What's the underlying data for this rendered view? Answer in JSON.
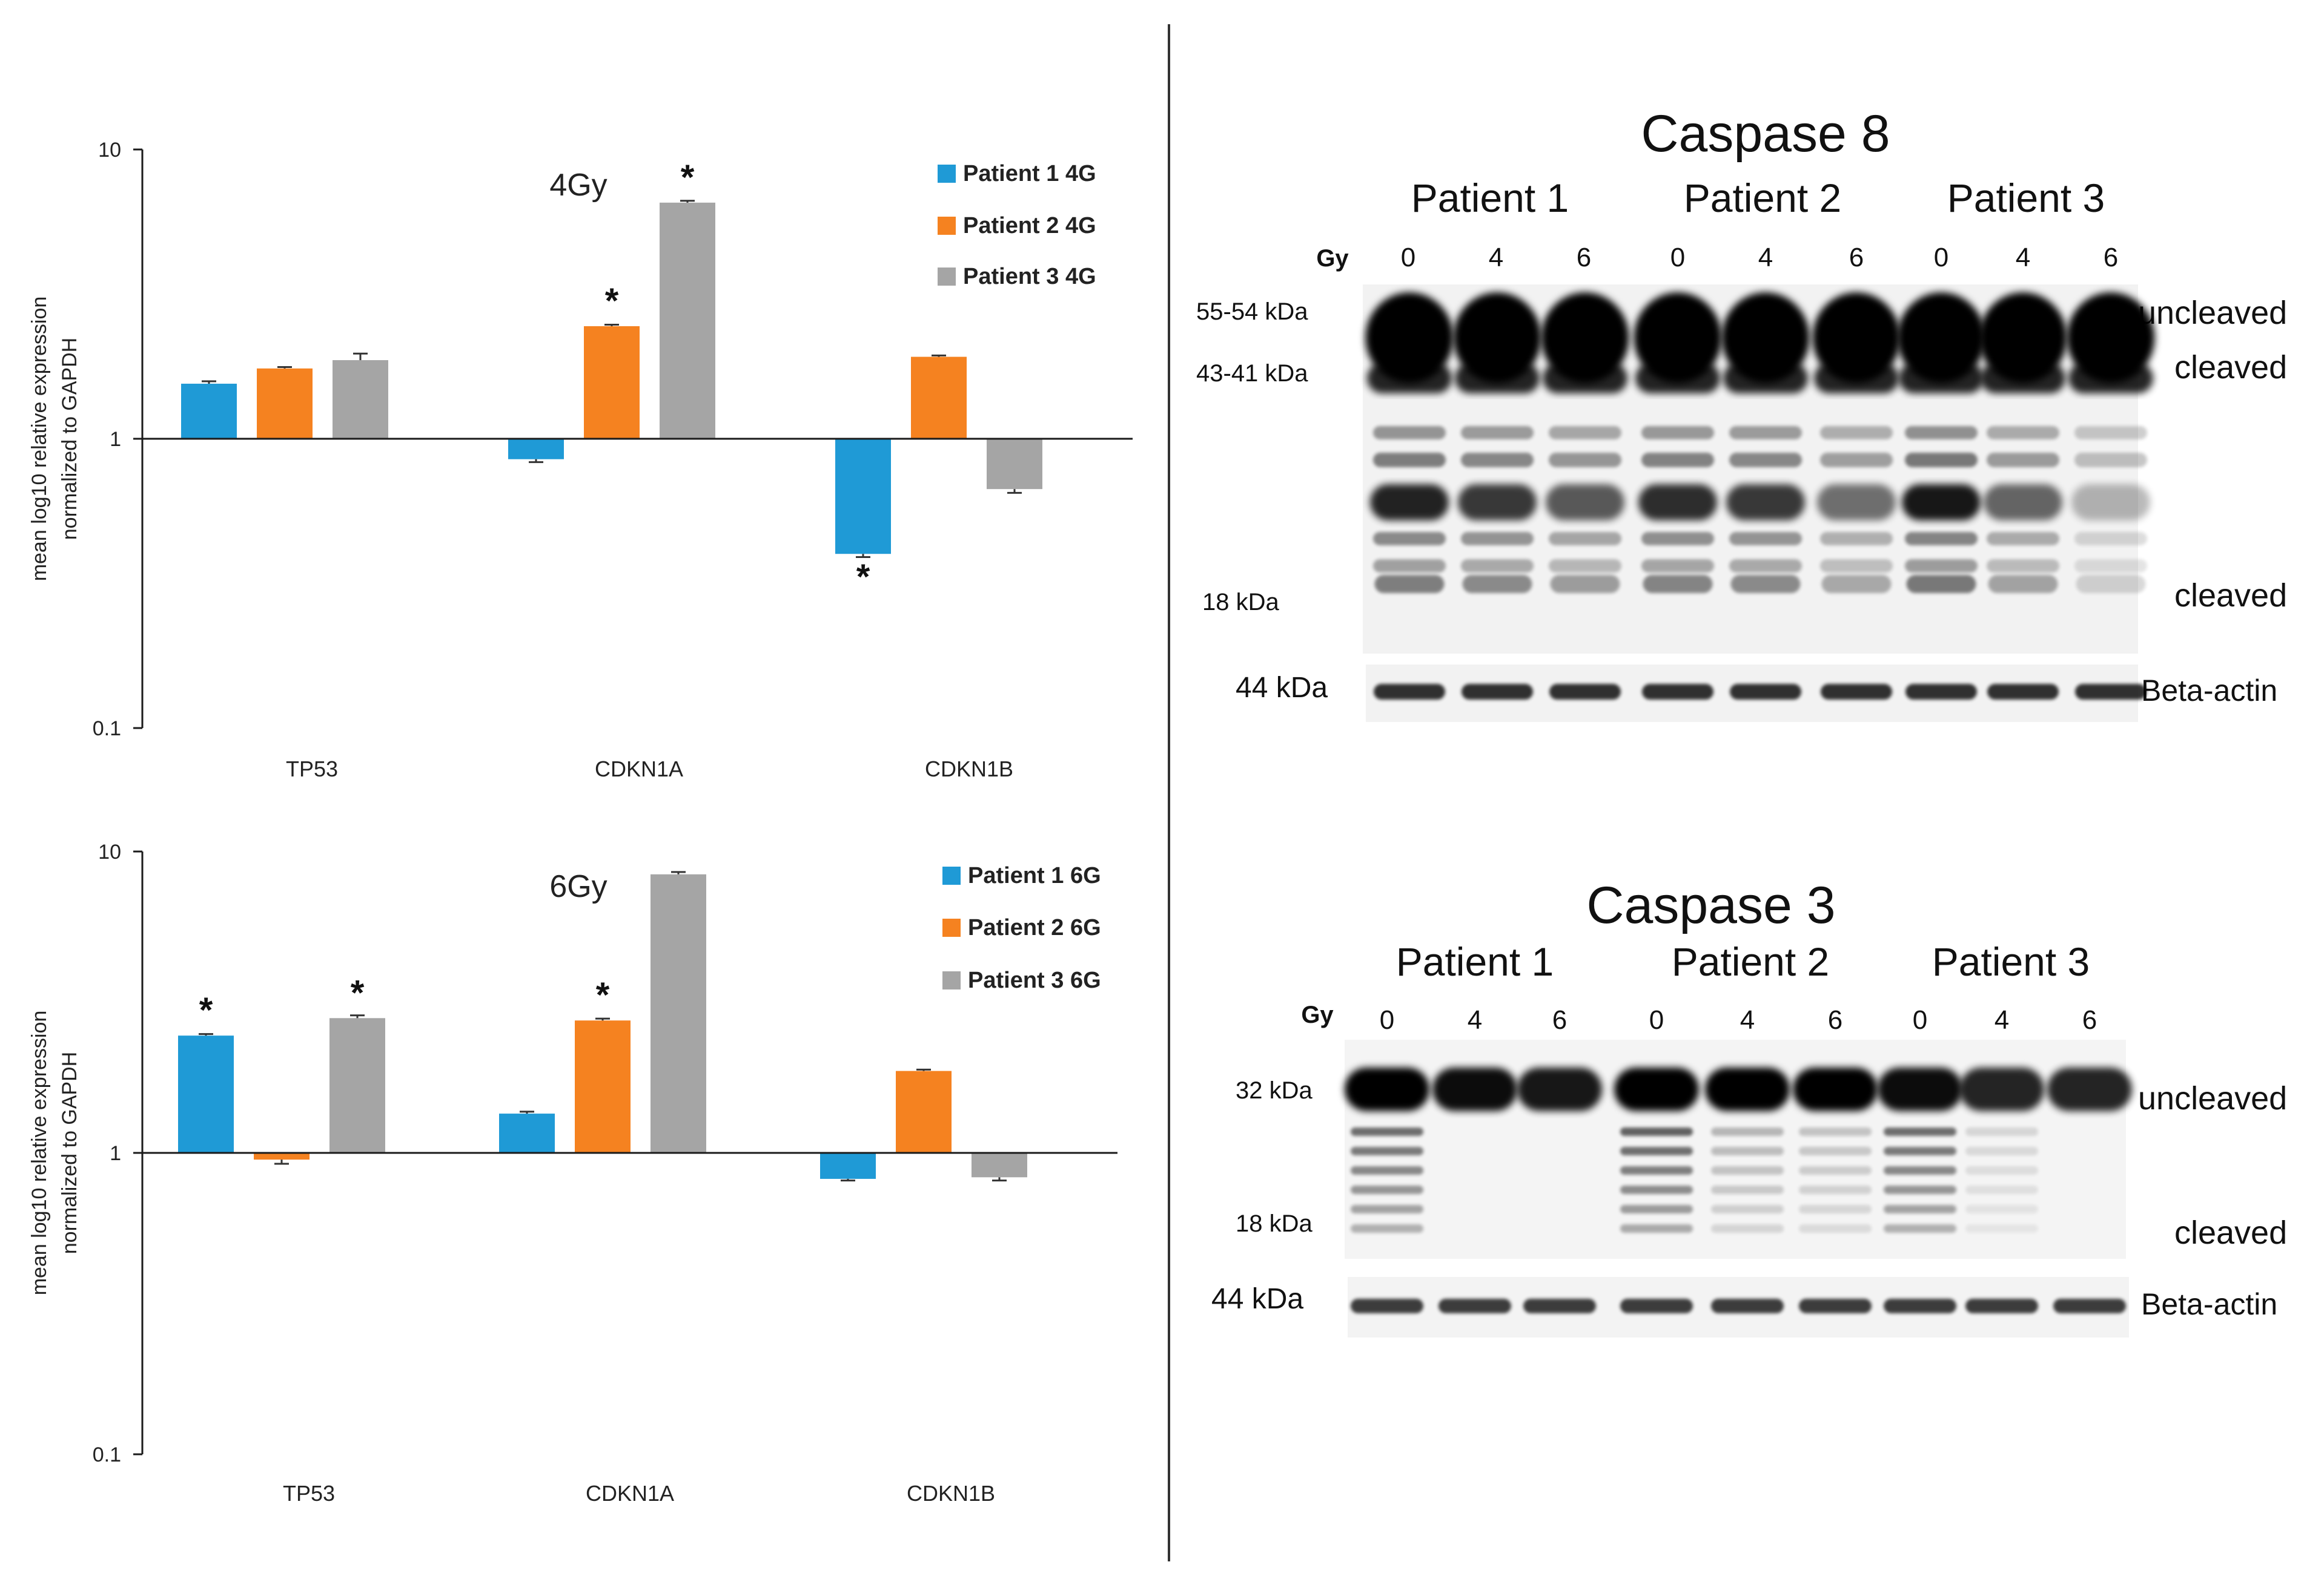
{
  "colors": {
    "patient1": "#1f9ad6",
    "patient2": "#f58220",
    "patient3": "#a5a5a5",
    "axis": "#1a1a1a",
    "divider": "#333333"
  },
  "chart_data": [
    {
      "type": "bar",
      "id": "chart-4gy",
      "title": "4Gy",
      "scale": "log",
      "ylim": [
        0.1,
        10
      ],
      "yticks": [
        "10",
        "1",
        "0.1"
      ],
      "ylabel_line1": "mean log10 relative expression",
      "ylabel_line2": "normalized to GAPDH",
      "categories": [
        "TP53",
        "CDKN1A",
        "CDKN1B"
      ],
      "legend_position": "top-right",
      "series": [
        {
          "name": "Patient 1 4G",
          "color": "#1f9ad6",
          "values": [
            1.55,
            0.85,
            0.4
          ],
          "errors": [
            0.03,
            0.02,
            0.01
          ],
          "significant": [
            false,
            false,
            true
          ]
        },
        {
          "name": "Patient 2 4G",
          "color": "#f58220",
          "values": [
            1.75,
            2.45,
            1.92
          ],
          "errors": [
            0.02,
            0.03,
            0.02
          ],
          "significant": [
            false,
            true,
            false
          ]
        },
        {
          "name": "Patient 3 4G",
          "color": "#a5a5a5",
          "values": [
            1.87,
            6.55,
            0.67
          ],
          "errors": [
            0.1,
            0.1,
            0.02
          ],
          "significant": [
            false,
            true,
            false
          ]
        }
      ]
    },
    {
      "type": "bar",
      "id": "chart-6gy",
      "title": "6Gy",
      "scale": "log",
      "ylim": [
        0.1,
        10
      ],
      "yticks": [
        "10",
        "1",
        "0.1"
      ],
      "ylabel_line1": "mean log10 relative expression",
      "ylabel_line2": "normalized to GAPDH",
      "categories": [
        "TP53",
        "CDKN1A",
        "CDKN1B"
      ],
      "legend_position": "top-right",
      "series": [
        {
          "name": "Patient 1 6G",
          "color": "#1f9ad6",
          "values": [
            2.45,
            1.35,
            0.82
          ],
          "errors": [
            0.03,
            0.02,
            0.01
          ],
          "significant": [
            true,
            false,
            false
          ]
        },
        {
          "name": "Patient 2 6G",
          "color": "#f58220",
          "values": [
            0.95,
            2.75,
            1.87
          ],
          "errors": [
            0.03,
            0.04,
            0.02
          ],
          "significant": [
            false,
            true,
            false
          ]
        },
        {
          "name": "Patient 3 6G",
          "color": "#a5a5a5",
          "values": [
            2.8,
            8.4,
            0.83
          ],
          "errors": [
            0.06,
            0.15,
            0.02
          ],
          "significant": [
            true,
            false,
            false
          ]
        }
      ]
    }
  ],
  "blots": {
    "caspase8": {
      "title": "Caspase 8",
      "patients": [
        "Patient 1",
        "Patient 2",
        "Patient 3"
      ],
      "gy_label": "Gy",
      "doses": [
        "0",
        "4",
        "6",
        "0",
        "4",
        "6",
        "0",
        "4",
        "6"
      ],
      "markers": [
        "55-54 kDa",
        "43-41 kDa",
        "18 kDa"
      ],
      "bands": [
        "uncleaved",
        "cleaved",
        "cleaved"
      ],
      "loading_marker": "44 kDa",
      "loading_label": "Beta-actin"
    },
    "caspase3": {
      "title": "Caspase 3",
      "patients": [
        "Patient 1",
        "Patient 2",
        "Patient 3"
      ],
      "gy_label": "Gy",
      "doses": [
        "0",
        "4",
        "6",
        "0",
        "4",
        "6",
        "0",
        "4",
        "6"
      ],
      "markers": [
        "32 kDa",
        "18 kDa"
      ],
      "bands": [
        "uncleaved",
        "cleaved"
      ],
      "loading_marker": "44 kDa",
      "loading_label": "Beta-actin"
    }
  }
}
